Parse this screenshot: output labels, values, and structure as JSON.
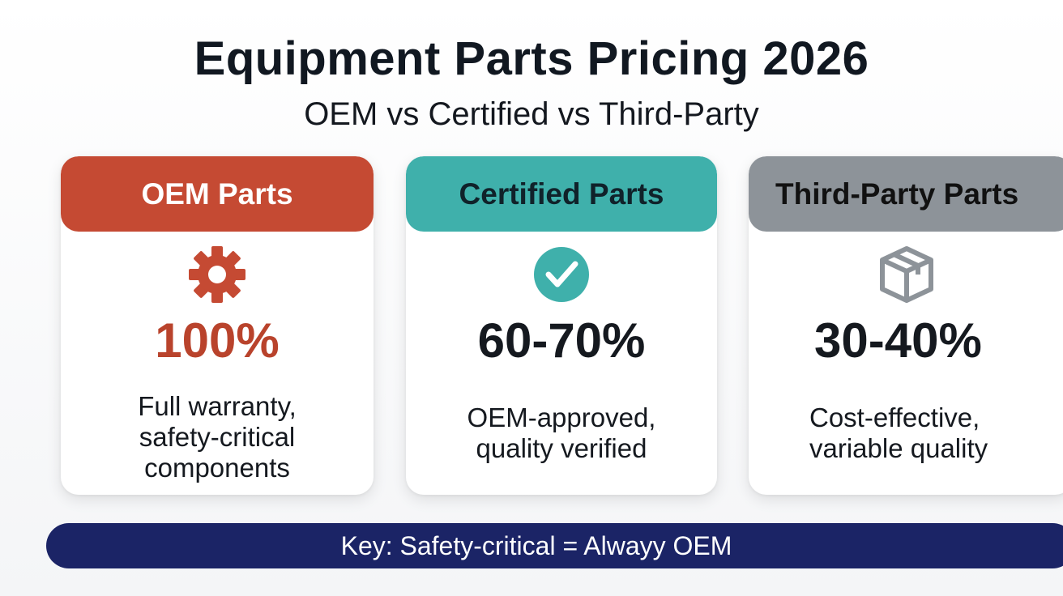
{
  "header": {
    "title": "Equipment Parts Pricing 2026",
    "subtitle": "OEM vs Certified vs Third-Party"
  },
  "cards": [
    {
      "title": "OEM Parts",
      "icon": "gear-icon",
      "percentage": "100%",
      "description_lines": [
        "Full warranty,",
        "safety-critical",
        "components"
      ],
      "accent_color": "#c54a33"
    },
    {
      "title": "Certified Parts",
      "icon": "checkmark-circle-icon",
      "percentage": "60-70%",
      "description_lines": [
        "OEM-approved,",
        "quality verified"
      ],
      "accent_color": "#3fb0ab"
    },
    {
      "title": "Third-Party Parts",
      "icon": "box-icon",
      "percentage": "30-40%",
      "description_lines": [
        "Cost-effective,",
        "variable quality"
      ],
      "accent_color": "#8d9399"
    }
  ],
  "key": {
    "text": "Key: Safety-critical = Alwayy OEM",
    "color": "#1b2466"
  }
}
